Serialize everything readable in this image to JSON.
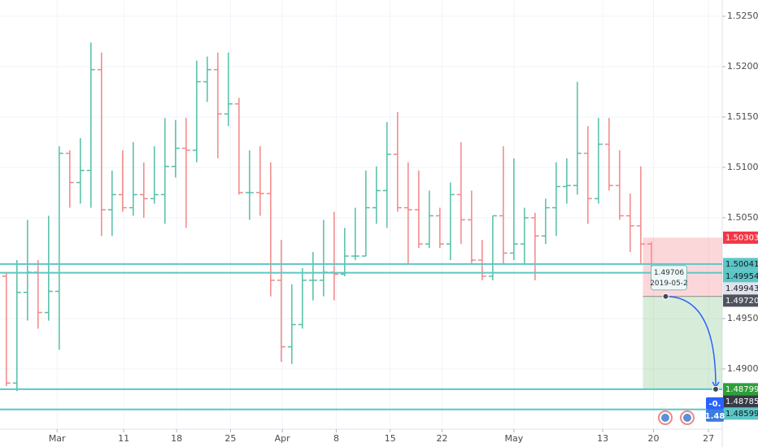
{
  "chart_data": {
    "type": "ohlc",
    "x": [
      0,
      1,
      2,
      3,
      4,
      5,
      6,
      7,
      8,
      9,
      10,
      11,
      12,
      13,
      14,
      15,
      16,
      17,
      18,
      19,
      20,
      21,
      22,
      23,
      24,
      25,
      26,
      27,
      28,
      29,
      30,
      31,
      32,
      33,
      34,
      35,
      36,
      37,
      38,
      39,
      40,
      41,
      42,
      43,
      44,
      45,
      46,
      47,
      48,
      49,
      50,
      51,
      52,
      53,
      54,
      55,
      56,
      57,
      58,
      59,
      60,
      61
    ],
    "ohlc": [
      [
        1.4992,
        1.4996,
        1.4883,
        1.4886
      ],
      [
        1.4886,
        1.5008,
        1.4878,
        1.4976
      ],
      [
        1.4976,
        1.5048,
        1.4948,
        1.4996
      ],
      [
        1.4996,
        1.5008,
        1.494,
        1.4956
      ],
      [
        1.4956,
        1.5052,
        1.4948,
        1.4977
      ],
      [
        1.4977,
        1.5121,
        1.4919,
        1.5114
      ],
      [
        1.5114,
        1.5117,
        1.506,
        1.5085
      ],
      [
        1.5085,
        1.5129,
        1.5064,
        1.5097
      ],
      [
        1.5097,
        1.5224,
        1.506,
        1.5197
      ],
      [
        1.5197,
        1.5214,
        1.5032,
        1.5058
      ],
      [
        1.5058,
        1.5097,
        1.5032,
        1.5073
      ],
      [
        1.5073,
        1.5117,
        1.5056,
        1.506
      ],
      [
        1.506,
        1.5125,
        1.5052,
        1.5073
      ],
      [
        1.5073,
        1.5105,
        1.505,
        1.5069
      ],
      [
        1.5069,
        1.5121,
        1.5064,
        1.5073
      ],
      [
        1.5073,
        1.5149,
        1.5044,
        1.5101
      ],
      [
        1.5101,
        1.5147,
        1.509,
        1.5119
      ],
      [
        1.5119,
        1.5149,
        1.504,
        1.5117
      ],
      [
        1.5117,
        1.5206,
        1.5105,
        1.5185
      ],
      [
        1.5185,
        1.521,
        1.5165,
        1.5197
      ],
      [
        1.5197,
        1.5214,
        1.5109,
        1.5153
      ],
      [
        1.5153,
        1.5214,
        1.5141,
        1.5163
      ],
      [
        1.5163,
        1.5169,
        1.5073,
        1.5075
      ],
      [
        1.5075,
        1.5117,
        1.5048,
        1.5075
      ],
      [
        1.5075,
        1.5121,
        1.5052,
        1.5074
      ],
      [
        1.5074,
        1.5105,
        1.4972,
        1.4988
      ],
      [
        1.4988,
        1.5028,
        1.4907,
        1.4922
      ],
      [
        1.4922,
        1.4984,
        1.4905,
        1.4944
      ],
      [
        1.4944,
        1.5,
        1.494,
        1.4988
      ],
      [
        1.4988,
        1.5016,
        1.4968,
        1.4988
      ],
      [
        1.4988,
        1.5048,
        1.4972,
        1.4996
      ],
      [
        1.4996,
        1.5056,
        1.4968,
        1.4994
      ],
      [
        1.4994,
        1.504,
        1.4992,
        1.5012
      ],
      [
        1.5012,
        1.506,
        1.5008,
        1.5012
      ],
      [
        1.5012,
        1.5097,
        1.5012,
        1.506
      ],
      [
        1.506,
        1.5101,
        1.5044,
        1.5077
      ],
      [
        1.5077,
        1.5145,
        1.504,
        1.5113
      ],
      [
        1.5113,
        1.5155,
        1.5056,
        1.506
      ],
      [
        1.506,
        1.5105,
        1.5004,
        1.5058
      ],
      [
        1.5058,
        1.5097,
        1.502,
        1.5024
      ],
      [
        1.5024,
        1.5077,
        1.502,
        1.5052
      ],
      [
        1.5052,
        1.506,
        1.502,
        1.5024
      ],
      [
        1.5024,
        1.5085,
        1.5008,
        1.5073
      ],
      [
        1.5073,
        1.5125,
        1.5024,
        1.5048
      ],
      [
        1.5048,
        1.5077,
        1.5004,
        1.5008
      ],
      [
        1.5008,
        1.5028,
        1.4988,
        1.4992
      ],
      [
        1.4992,
        1.5052,
        1.4988,
        1.5052
      ],
      [
        1.5052,
        1.5121,
        1.5004,
        1.5015
      ],
      [
        1.5015,
        1.5109,
        1.5008,
        1.5024
      ],
      [
        1.5024,
        1.506,
        1.5004,
        1.505
      ],
      [
        1.505,
        1.5055,
        1.4988,
        1.5032
      ],
      [
        1.5032,
        1.5069,
        1.5024,
        1.506
      ],
      [
        1.506,
        1.5105,
        1.5032,
        1.5081
      ],
      [
        1.5081,
        1.5109,
        1.5064,
        1.5082
      ],
      [
        1.5082,
        1.5185,
        1.5073,
        1.5114
      ],
      [
        1.5114,
        1.5141,
        1.5044,
        1.5069
      ],
      [
        1.5069,
        1.5149,
        1.5064,
        1.5123
      ],
      [
        1.5123,
        1.5149,
        1.5077,
        1.5082
      ],
      [
        1.5082,
        1.5117,
        1.5048,
        1.5052
      ],
      [
        1.5052,
        1.5074,
        1.5016,
        1.5042
      ],
      [
        1.5042,
        1.5101,
        1.5004,
        1.5024
      ],
      [
        1.5024,
        1.5026,
        1.4988,
        1.4994
      ]
    ],
    "up_color": "#53bfa6",
    "down_color": "#f28686",
    "xlim": [
      -0.6,
      67.7
    ],
    "xticks": [
      {
        "value": 4.8,
        "label": "Mar"
      },
      {
        "value": 11.1,
        "label": "11"
      },
      {
        "value": 16.1,
        "label": "18"
      },
      {
        "value": 21.2,
        "label": "25"
      },
      {
        "value": 26.1,
        "label": "Apr"
      },
      {
        "value": 31.2,
        "label": "8"
      },
      {
        "value": 36.3,
        "label": "15"
      },
      {
        "value": 41.2,
        "label": "22"
      },
      {
        "value": 48,
        "label": "May"
      },
      {
        "value": 56.4,
        "label": "13"
      },
      {
        "value": 61.2,
        "label": "20"
      },
      {
        "value": 66.4,
        "label": "27"
      }
    ],
    "ylim": [
      1.48403,
      1.52661
    ],
    "yticks": [
      {
        "value": 1.525,
        "label": "1.52500"
      },
      {
        "value": 1.52,
        "label": "1.52000"
      },
      {
        "value": 1.515,
        "label": "1.51500"
      },
      {
        "value": 1.51,
        "label": "1.51000"
      },
      {
        "value": 1.505,
        "label": "1.50500"
      },
      {
        "value": 1.495,
        "label": "1.49500"
      },
      {
        "value": 1.49,
        "label": "1.49000"
      }
    ],
    "grid": true,
    "hlines": {
      "values": [
        1.50041,
        1.49954,
        1.48799,
        1.48599
      ],
      "color": "#5cc6c6"
    },
    "position": {
      "stop": 1.50303,
      "entry": 1.4972,
      "target": 1.48799,
      "start": 60.2
    },
    "price_labels": [
      {
        "value": 1.50303,
        "color": "#f23645"
      },
      {
        "value": 1.50041,
        "color": "#5cc6c6"
      },
      {
        "value": 1.49954,
        "color": "#5cc6c6"
      },
      {
        "value": 1.49943,
        "color": "#e0e3eb"
      },
      {
        "value": 1.4972,
        "label": "1.49720",
        "color": "#50535e"
      },
      {
        "value": 1.48799,
        "color": "#2e9e3a"
      },
      {
        "value": 1.48785,
        "color": "#363a45"
      },
      {
        "value": 1.48599,
        "color": "#5cc6c6"
      }
    ],
    "callout": {
      "price": 1.49706,
      "date": "2019-05-2"
    },
    "overlay_texts": [
      "-0.",
      "1.48"
    ]
  }
}
